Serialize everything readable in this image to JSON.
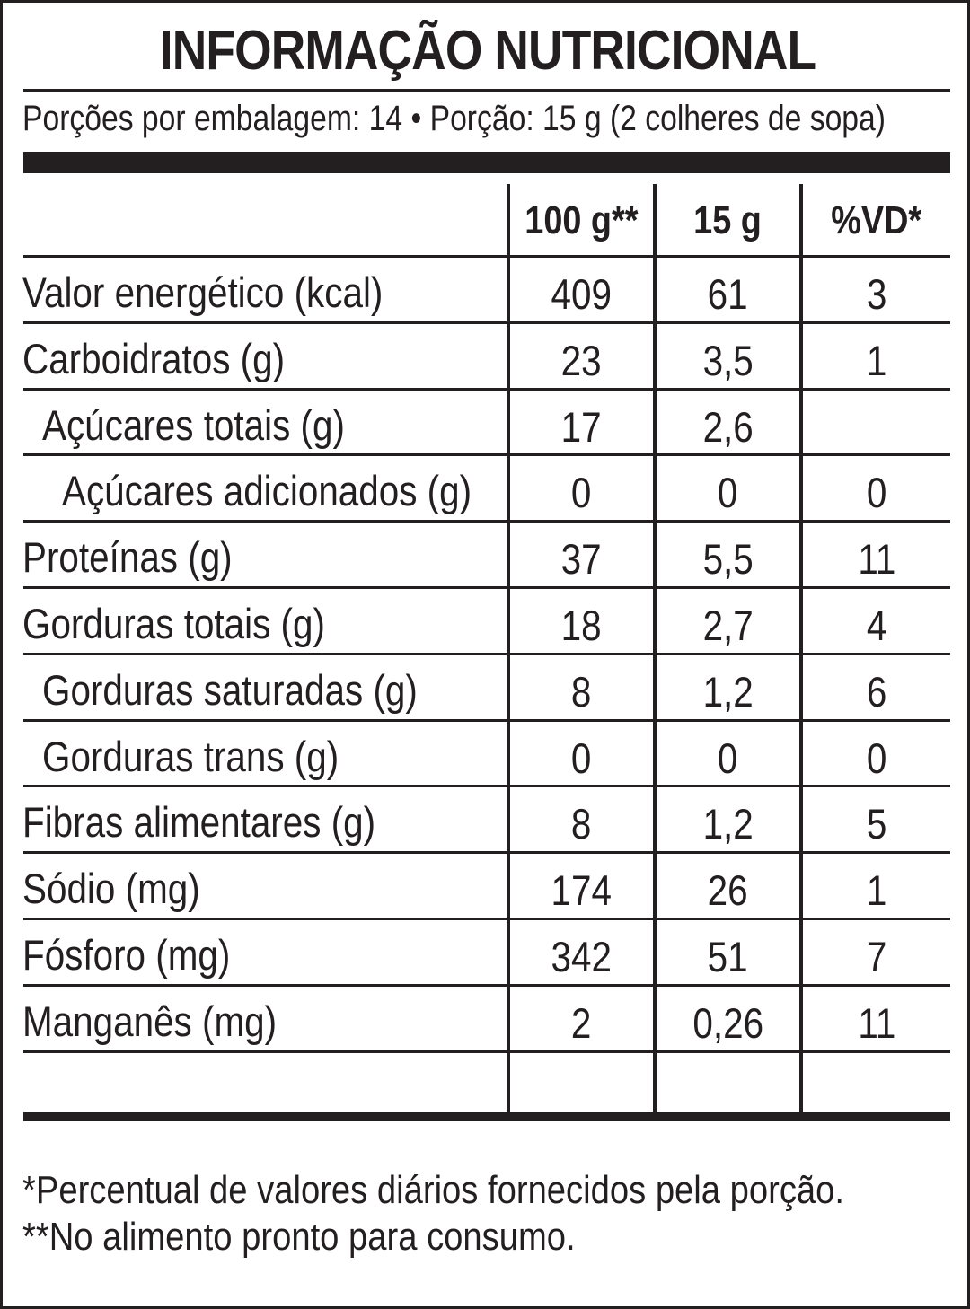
{
  "title": "INFORMAÇÃO NUTRICIONAL",
  "servings_line": "Porções por embalagem: 14 • Porção: 15 g (2 colheres de sopa)",
  "columns": [
    "100 g**",
    "15 g",
    "%VD*"
  ],
  "rows": [
    {
      "name": "Valor energético (kcal)",
      "indent": 0,
      "v100": "409",
      "vportion": "61",
      "vd": "3"
    },
    {
      "name": "Carboidratos (g)",
      "indent": 0,
      "v100": "23",
      "vportion": "3,5",
      "vd": "1"
    },
    {
      "name": "Açúcares totais (g)",
      "indent": 1,
      "v100": "17",
      "vportion": "2,6",
      "vd": ""
    },
    {
      "name": "Açúcares adicionados (g)",
      "indent": 2,
      "v100": "0",
      "vportion": "0",
      "vd": "0"
    },
    {
      "name": "Proteínas (g)",
      "indent": 0,
      "v100": "37",
      "vportion": "5,5",
      "vd": "11"
    },
    {
      "name": "Gorduras totais (g)",
      "indent": 0,
      "v100": "18",
      "vportion": "2,7",
      "vd": "4"
    },
    {
      "name": "Gorduras saturadas (g)",
      "indent": 1,
      "v100": "8",
      "vportion": "1,2",
      "vd": "6"
    },
    {
      "name": "Gorduras trans (g)",
      "indent": 1,
      "v100": "0",
      "vportion": "0",
      "vd": "0"
    },
    {
      "name": "Fibras alimentares (g)",
      "indent": 0,
      "v100": "8",
      "vportion": "1,2",
      "vd": "5"
    },
    {
      "name": "Sódio (mg)",
      "indent": 0,
      "v100": "174",
      "vportion": "26",
      "vd": "1"
    },
    {
      "name": "Fósforo (mg)",
      "indent": 0,
      "v100": "342",
      "vportion": "51",
      "vd": "7"
    },
    {
      "name": "Manganês (mg)",
      "indent": 0,
      "v100": "2",
      "vportion": "0,26",
      "vd": "11"
    }
  ],
  "footnotes": [
    "*Percentual de valores diários fornecidos pela porção.",
    "**No alimento pronto para consumo."
  ]
}
